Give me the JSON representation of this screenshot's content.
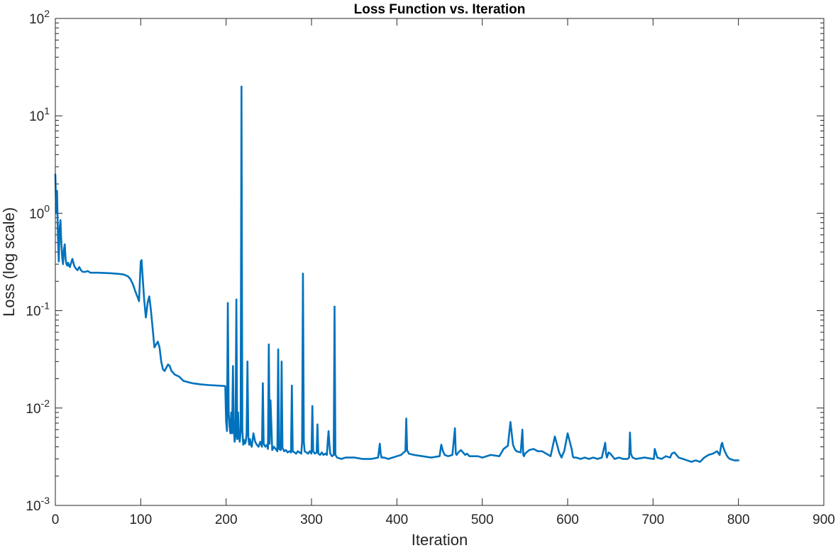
{
  "chart_data": {
    "type": "line",
    "title": "Loss Function vs. Iteration",
    "xlabel": "Iteration",
    "ylabel": "Loss (log scale)",
    "xlim": [
      0,
      900
    ],
    "ylim": [
      0.001,
      100
    ],
    "yscale": "log",
    "grid": false,
    "box": true,
    "x_ticks": [
      {
        "value": 0,
        "label": "0"
      },
      {
        "value": 100,
        "label": "100"
      },
      {
        "value": 200,
        "label": "200"
      },
      {
        "value": 300,
        "label": "300"
      },
      {
        "value": 400,
        "label": "400"
      },
      {
        "value": 500,
        "label": "500"
      },
      {
        "value": 600,
        "label": "600"
      },
      {
        "value": 700,
        "label": "700"
      },
      {
        "value": 800,
        "label": "800"
      },
      {
        "value": 900,
        "label": "900"
      }
    ],
    "y_ticks": [
      {
        "value": 0.001,
        "base": "10",
        "exp": "-3"
      },
      {
        "value": 0.01,
        "base": "10",
        "exp": "-2"
      },
      {
        "value": 0.1,
        "base": "10",
        "exp": "-1"
      },
      {
        "value": 1,
        "base": "10",
        "exp": "0"
      },
      {
        "value": 10,
        "base": "10",
        "exp": "1"
      },
      {
        "value": 100,
        "base": "10",
        "exp": "2"
      }
    ],
    "series": [
      {
        "color": "#0072BD",
        "x": [
          0,
          1,
          2,
          3,
          4,
          5,
          6,
          7,
          8,
          9,
          10,
          11,
          12,
          13,
          14,
          15,
          16,
          17,
          18,
          20,
          22,
          24,
          26,
          28,
          30,
          32,
          35,
          38,
          41,
          44,
          47,
          50,
          55,
          60,
          65,
          70,
          75,
          80,
          85,
          88,
          91,
          94,
          96,
          98,
          100,
          101,
          102,
          104,
          106,
          107,
          108,
          110,
          112,
          114,
          116,
          118,
          120,
          122,
          124,
          126,
          128,
          130,
          132,
          134,
          136,
          140,
          145,
          150,
          160,
          170,
          180,
          190,
          199,
          200,
          201,
          202,
          203,
          204,
          205,
          206,
          207,
          208,
          209,
          210,
          211,
          212,
          213,
          214,
          215,
          216,
          217,
          218,
          219,
          220,
          221,
          222,
          223,
          224,
          225,
          226,
          227,
          228,
          229,
          230,
          232,
          234,
          236,
          238,
          240,
          242,
          243,
          244,
          246,
          248,
          249,
          250,
          251,
          252,
          254,
          256,
          258,
          260,
          261,
          262,
          264,
          265,
          266,
          268,
          270,
          272,
          274,
          276,
          277,
          278,
          280,
          282,
          284,
          286,
          288,
          289,
          290,
          291,
          292,
          294,
          296,
          298,
          300,
          301,
          302,
          304,
          306,
          307,
          308,
          310,
          312,
          314,
          316,
          318,
          319,
          320,
          321,
          322,
          324,
          326,
          327,
          328,
          329,
          330,
          335,
          340,
          350,
          360,
          370,
          378,
          380,
          381,
          382,
          385,
          390,
          395,
          400,
          405,
          408,
          410,
          411,
          412,
          414,
          420,
          430,
          440,
          450,
          452,
          454,
          456,
          460,
          465,
          468,
          469,
          470,
          472,
          475,
          480,
          482,
          485,
          490,
          495,
          500,
          510,
          520,
          525,
          530,
          533,
          535,
          536,
          538,
          540,
          545,
          547,
          548,
          549,
          550,
          555,
          560,
          565,
          570,
          575,
          580,
          585,
          590,
          592,
          593,
          594,
          596,
          600,
          605,
          606,
          607,
          610,
          615,
          620,
          625,
          630,
          635,
          640,
          644,
          645,
          646,
          648,
          650,
          655,
          660,
          665,
          670,
          672,
          673,
          674,
          676,
          680,
          690,
          700,
          701,
          702,
          705,
          710,
          715,
          720,
          722,
          725,
          730,
          735,
          740,
          745,
          750,
          755,
          760,
          765,
          770,
          775,
          778,
          780,
          781,
          782,
          784,
          786,
          788,
          790,
          795,
          800
        ],
        "y": [
          2.5,
          1.0,
          1.7,
          0.6,
          0.32,
          0.7,
          0.85,
          0.5,
          0.35,
          0.3,
          0.42,
          0.48,
          0.34,
          0.3,
          0.29,
          0.31,
          0.29,
          0.28,
          0.3,
          0.34,
          0.29,
          0.27,
          0.26,
          0.28,
          0.26,
          0.25,
          0.25,
          0.255,
          0.245,
          0.245,
          0.245,
          0.245,
          0.244,
          0.243,
          0.242,
          0.24,
          0.238,
          0.235,
          0.225,
          0.21,
          0.185,
          0.155,
          0.14,
          0.125,
          0.32,
          0.33,
          0.24,
          0.13,
          0.085,
          0.1,
          0.12,
          0.14,
          0.1,
          0.065,
          0.042,
          0.045,
          0.048,
          0.042,
          0.03,
          0.025,
          0.024,
          0.026,
          0.028,
          0.027,
          0.024,
          0.022,
          0.021,
          0.019,
          0.018,
          0.0175,
          0.0172,
          0.017,
          0.0168,
          0.0072,
          0.0058,
          0.12,
          0.009,
          0.0065,
          0.0055,
          0.009,
          0.0055,
          0.027,
          0.006,
          0.0045,
          0.0052,
          0.13,
          0.0048,
          0.009,
          0.005,
          0.0045,
          0.0058,
          20.0,
          0.006,
          0.0042,
          0.0047,
          0.0043,
          0.0045,
          0.0055,
          0.03,
          0.005,
          0.0042,
          0.0048,
          0.0042,
          0.004,
          0.0055,
          0.0045,
          0.0042,
          0.004,
          0.0045,
          0.004,
          0.018,
          0.0043,
          0.004,
          0.0042,
          0.0038,
          0.045,
          0.0043,
          0.012,
          0.0037,
          0.004,
          0.0038,
          0.0036,
          0.04,
          0.0038,
          0.0037,
          0.03,
          0.0039,
          0.0036,
          0.0037,
          0.0035,
          0.0036,
          0.0035,
          0.017,
          0.0036,
          0.0035,
          0.0034,
          0.0036,
          0.0035,
          0.0034,
          0.0045,
          0.24,
          0.0045,
          0.0036,
          0.0035,
          0.0034,
          0.0036,
          0.0034,
          0.0105,
          0.0036,
          0.0034,
          0.0035,
          0.0068,
          0.0034,
          0.0033,
          0.0035,
          0.0033,
          0.0034,
          0.0033,
          0.0045,
          0.0058,
          0.0042,
          0.0034,
          0.0032,
          0.0033,
          0.11,
          0.0033,
          0.0032,
          0.0031,
          0.003,
          0.0031,
          0.0031,
          0.003,
          0.003,
          0.0031,
          0.0043,
          0.0034,
          0.0031,
          0.0031,
          0.003,
          0.0031,
          0.0032,
          0.0033,
          0.0035,
          0.0036,
          0.0078,
          0.0037,
          0.0034,
          0.0033,
          0.0032,
          0.0031,
          0.0032,
          0.0042,
          0.0036,
          0.0033,
          0.0032,
          0.0033,
          0.0062,
          0.0034,
          0.0033,
          0.0035,
          0.0037,
          0.0033,
          0.0034,
          0.0032,
          0.0032,
          0.0032,
          0.0031,
          0.0033,
          0.0032,
          0.0038,
          0.0041,
          0.0072,
          0.005,
          0.0042,
          0.0038,
          0.0036,
          0.0035,
          0.006,
          0.0033,
          0.0032,
          0.0034,
          0.0037,
          0.0038,
          0.0036,
          0.0036,
          0.0034,
          0.0032,
          0.0051,
          0.0035,
          0.0032,
          0.0031,
          0.0033,
          0.0036,
          0.0055,
          0.0037,
          0.0032,
          0.0031,
          0.0031,
          0.003,
          0.0031,
          0.003,
          0.0031,
          0.003,
          0.0031,
          0.0044,
          0.0034,
          0.0031,
          0.0035,
          0.0034,
          0.003,
          0.0031,
          0.003,
          0.003,
          0.0031,
          0.0056,
          0.0034,
          0.0031,
          0.003,
          0.0031,
          0.003,
          0.003,
          0.0038,
          0.0031,
          0.003,
          0.0032,
          0.0031,
          0.0034,
          0.0035,
          0.0031,
          0.003,
          0.0029,
          0.0028,
          0.0029,
          0.0028,
          0.0031,
          0.0033,
          0.0034,
          0.0036,
          0.0033,
          0.0042,
          0.0044,
          0.004,
          0.0036,
          0.0033,
          0.0031,
          0.003,
          0.0029,
          0.0029
        ]
      }
    ]
  }
}
